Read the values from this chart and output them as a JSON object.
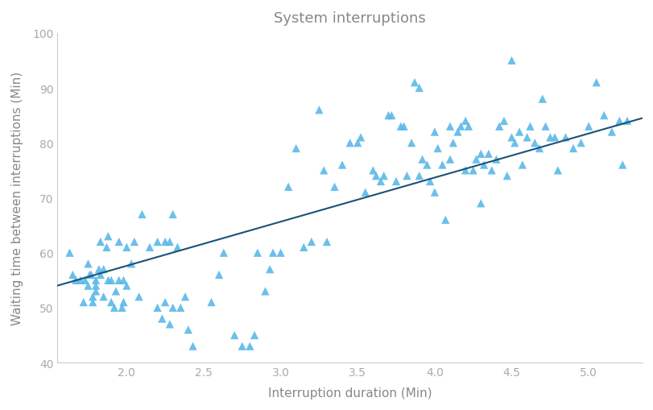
{
  "title": "System interruptions",
  "xlabel": "Interruption duration (Min)",
  "ylabel": "Waiting time between interruptions (Min)",
  "xlim": [
    1.55,
    5.35
  ],
  "ylim": [
    40,
    100
  ],
  "xticks": [
    2.0,
    2.5,
    3.0,
    3.5,
    4.0,
    4.5,
    5.0
  ],
  "yticks": [
    40,
    50,
    60,
    70,
    80,
    90,
    100
  ],
  "scatter_color": "#5BB8E8",
  "line_color": "#1A5276",
  "marker": "^",
  "marker_size": 55,
  "background_color": "#ffffff",
  "title_color": "#888888",
  "axis_color": "#aaaaaa",
  "line_x0": 1.55,
  "line_x1": 5.35,
  "line_y0": 54.0,
  "line_y1": 84.5,
  "x": [
    1.63,
    1.65,
    1.67,
    1.7,
    1.72,
    1.73,
    1.75,
    1.75,
    1.76,
    1.77,
    1.78,
    1.78,
    1.8,
    1.8,
    1.8,
    1.82,
    1.83,
    1.83,
    1.85,
    1.85,
    1.87,
    1.88,
    1.88,
    1.9,
    1.9,
    1.92,
    1.93,
    1.95,
    1.95,
    1.97,
    1.98,
    1.98,
    2.0,
    2.0,
    2.03,
    2.05,
    2.08,
    2.1,
    2.15,
    2.2,
    2.2,
    2.23,
    2.25,
    2.28,
    2.3,
    2.33,
    2.35,
    2.38,
    2.4,
    2.43,
    2.25,
    2.28,
    2.3,
    2.55,
    2.6,
    2.63,
    2.7,
    2.75,
    2.8,
    2.83,
    2.85,
    2.9,
    2.93,
    2.95,
    3.0,
    3.05,
    3.1,
    3.15,
    3.2,
    3.25,
    3.28,
    3.3,
    3.35,
    3.4,
    3.45,
    3.5,
    3.52,
    3.55,
    3.6,
    3.62,
    3.65,
    3.67,
    3.7,
    3.72,
    3.75,
    3.78,
    3.8,
    3.82,
    3.85,
    3.87,
    3.9,
    3.9,
    3.92,
    3.95,
    3.97,
    4.0,
    4.0,
    4.02,
    4.05,
    4.07,
    4.1,
    4.1,
    4.12,
    4.15,
    4.17,
    4.2,
    4.2,
    4.22,
    4.25,
    4.27,
    4.3,
    4.3,
    4.32,
    4.35,
    4.37,
    4.4,
    4.42,
    4.45,
    4.47,
    4.5,
    4.5,
    4.52,
    4.55,
    4.57,
    4.6,
    4.62,
    4.65,
    4.68,
    4.7,
    4.72,
    4.75,
    4.78,
    4.8,
    4.85,
    4.9,
    4.95,
    5.0,
    5.05,
    5.1,
    5.15,
    5.2,
    5.22,
    5.25
  ],
  "y": [
    60,
    56,
    55,
    55,
    51,
    55,
    54,
    58,
    56,
    56,
    51,
    52,
    53,
    54,
    55,
    57,
    62,
    56,
    52,
    57,
    61,
    63,
    55,
    55,
    51,
    50,
    53,
    55,
    62,
    50,
    51,
    55,
    61,
    54,
    58,
    62,
    52,
    67,
    61,
    62,
    50,
    48,
    51,
    47,
    67,
    61,
    50,
    52,
    46,
    43,
    62,
    62,
    50,
    51,
    56,
    60,
    45,
    43,
    43,
    45,
    60,
    53,
    57,
    60,
    60,
    72,
    79,
    61,
    62,
    86,
    75,
    62,
    72,
    76,
    80,
    80,
    81,
    71,
    75,
    74,
    73,
    74,
    85,
    85,
    73,
    83,
    83,
    74,
    80,
    91,
    74,
    90,
    77,
    76,
    73,
    71,
    82,
    79,
    76,
    66,
    77,
    83,
    80,
    82,
    83,
    75,
    84,
    83,
    75,
    77,
    69,
    78,
    76,
    78,
    75,
    77,
    83,
    84,
    74,
    81,
    95,
    80,
    82,
    76,
    81,
    83,
    80,
    79,
    88,
    83,
    81,
    81,
    75,
    81,
    79,
    80,
    83,
    91,
    85,
    82,
    84,
    76,
    84
  ]
}
